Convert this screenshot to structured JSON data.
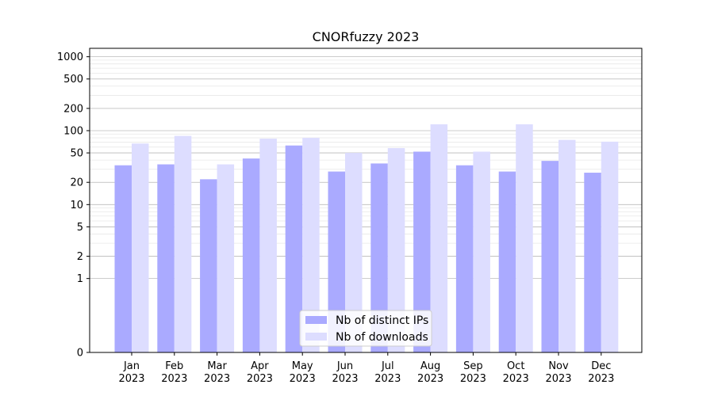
{
  "chart_data": {
    "type": "bar",
    "title": "CNORfuzzy 2023",
    "xlabel": "",
    "ylabel": "",
    "categories": [
      {
        "month": "Jan",
        "year": "2023"
      },
      {
        "month": "Feb",
        "year": "2023"
      },
      {
        "month": "Mar",
        "year": "2023"
      },
      {
        "month": "Apr",
        "year": "2023"
      },
      {
        "month": "May",
        "year": "2023"
      },
      {
        "month": "Jun",
        "year": "2023"
      },
      {
        "month": "Jul",
        "year": "2023"
      },
      {
        "month": "Aug",
        "year": "2023"
      },
      {
        "month": "Sep",
        "year": "2023"
      },
      {
        "month": "Oct",
        "year": "2023"
      },
      {
        "month": "Nov",
        "year": "2023"
      },
      {
        "month": "Dec",
        "year": "2023"
      }
    ],
    "series": [
      {
        "name": "Nb of distinct IPs",
        "color": "#aaaaff",
        "values": [
          34,
          35,
          22,
          42,
          63,
          28,
          36,
          52,
          34,
          28,
          39,
          27
        ]
      },
      {
        "name": "Nb of downloads",
        "color": "#ddddff",
        "values": [
          67,
          85,
          35,
          78,
          80,
          50,
          58,
          122,
          52,
          122,
          75,
          71
        ]
      }
    ],
    "y_scale": "symlog",
    "ylim": [
      0,
      1300
    ],
    "y_ticks": [
      {
        "value": 0,
        "label": "0"
      },
      {
        "value": 1,
        "label": "1"
      },
      {
        "value": 2,
        "label": "2"
      },
      {
        "value": 5,
        "label": "5"
      },
      {
        "value": 10,
        "label": "10"
      },
      {
        "value": 20,
        "label": "20"
      },
      {
        "value": 50,
        "label": "50"
      },
      {
        "value": 100,
        "label": "100"
      },
      {
        "value": 200,
        "label": "200"
      },
      {
        "value": 500,
        "label": "500"
      },
      {
        "value": 1000,
        "label": "1000"
      }
    ],
    "grid": true,
    "legend_position": "bottom-center"
  }
}
